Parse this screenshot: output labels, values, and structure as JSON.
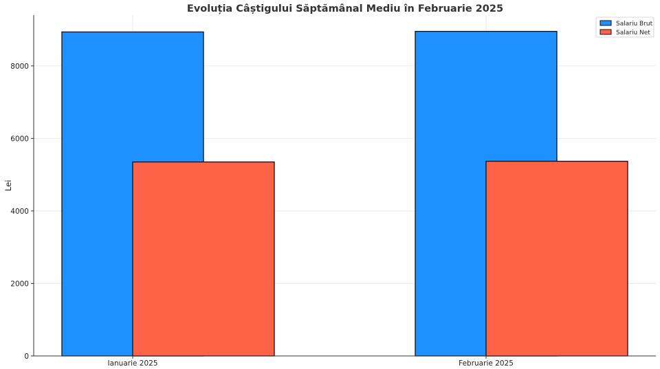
{
  "chart_data": {
    "type": "bar",
    "title": "Evoluția Câștigului Săptămânal Mediu în Februarie 2025",
    "xlabel": "",
    "ylabel": "Lei",
    "categories": [
      "Ianuarie 2025",
      "Februarie 2025"
    ],
    "series": [
      {
        "name": "Salariu Brut",
        "values": [
          8936,
          8952
        ],
        "color": "#1e90ff"
      },
      {
        "name": "Salariu Net",
        "values": [
          5350,
          5370
        ],
        "color": "#ff6347"
      }
    ],
    "ylim": [
      0,
      9400
    ],
    "yticks": [
      0,
      2000,
      4000,
      6000,
      8000
    ],
    "grid": true,
    "legend": "top-right"
  }
}
